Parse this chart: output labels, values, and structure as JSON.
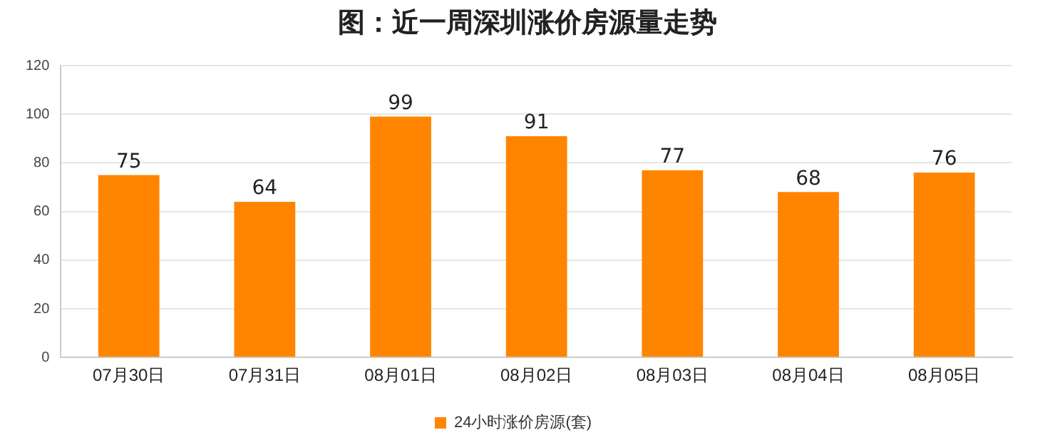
{
  "chart_data": {
    "type": "bar",
    "title": "图：近一周深圳涨价房源量走势",
    "categories": [
      "07月30日",
      "07月31日",
      "08月01日",
      "08月02日",
      "08月03日",
      "08月04日",
      "08月05日"
    ],
    "series": [
      {
        "name": "24小时涨价房源(套)",
        "color": "#ff8500",
        "values": [
          75,
          64,
          99,
          91,
          77,
          68,
          76
        ]
      }
    ],
    "ylim": [
      0,
      120
    ],
    "yticks": [
      0,
      20,
      40,
      60,
      80,
      100,
      120
    ],
    "grid": "y",
    "legend": "bottom",
    "data_labels": true
  }
}
